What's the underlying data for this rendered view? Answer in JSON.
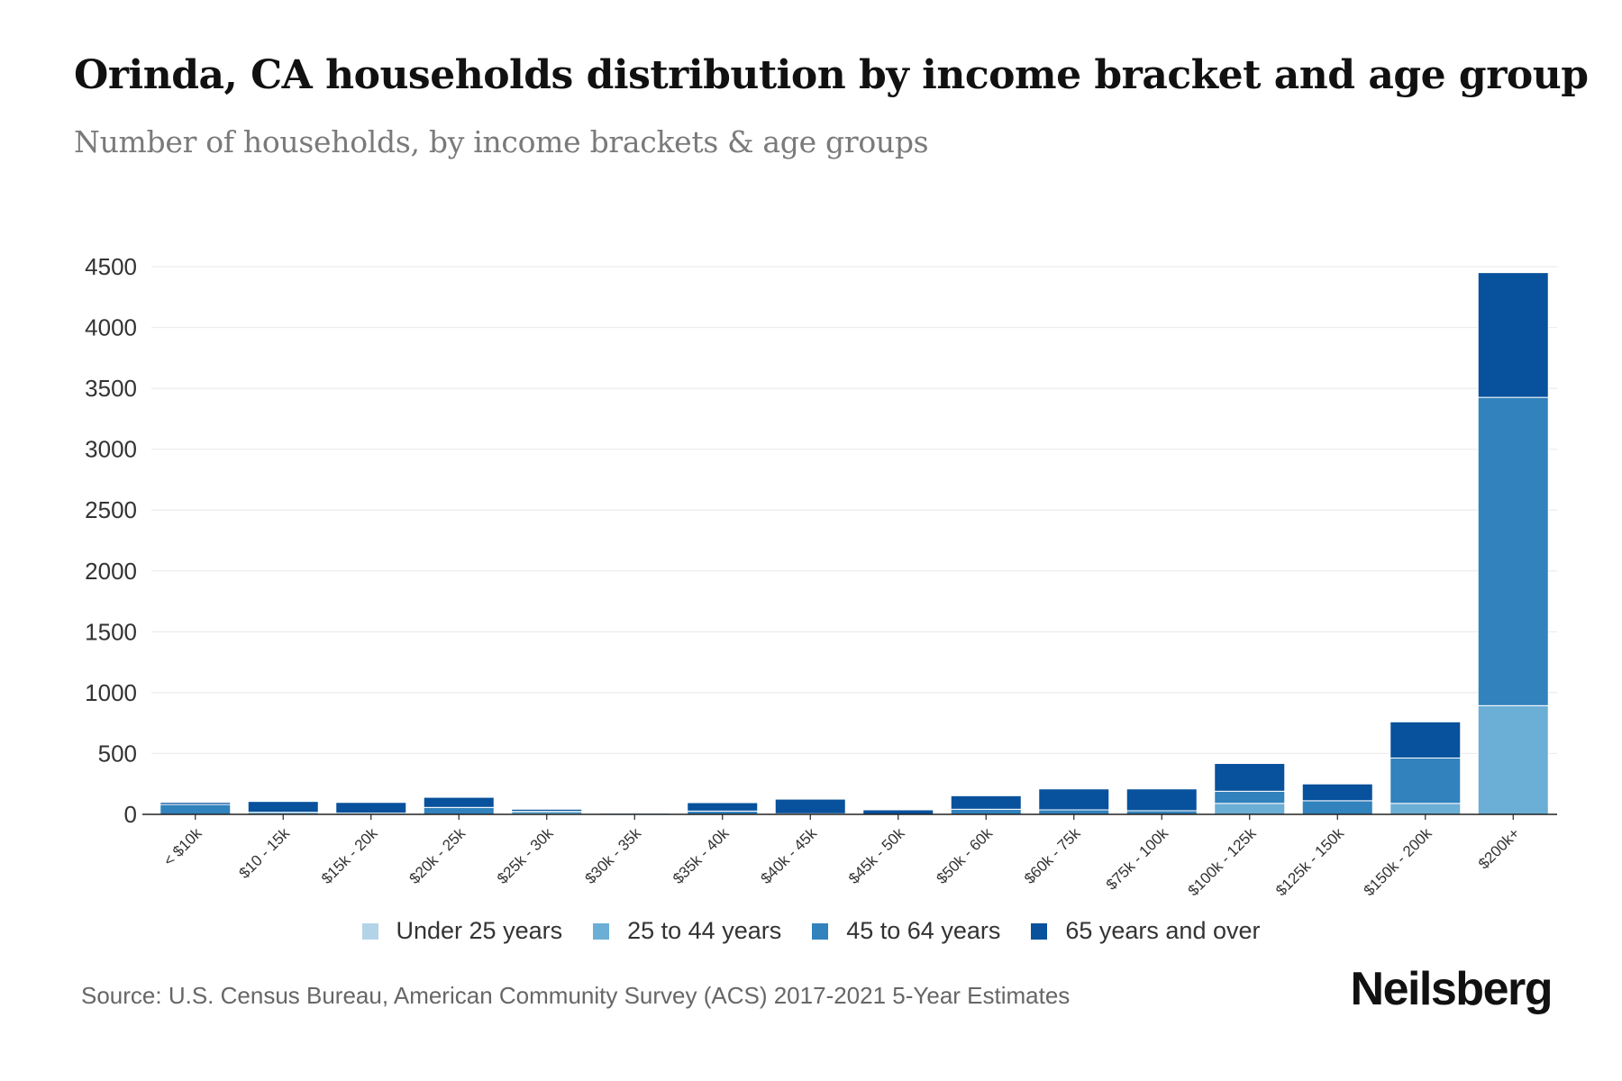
{
  "header": {
    "title": "Orinda, CA households distribution by income bracket and age group",
    "subtitle": "Number of households, by income brackets & age groups"
  },
  "footer": {
    "source": "Source: U.S. Census Bureau, American Community Survey (ACS) 2017-2021 5-Year Estimates",
    "brand": "Neilsberg"
  },
  "chart_data": {
    "type": "bar",
    "stacked": true,
    "title": "Orinda, CA households distribution by income bracket and age group",
    "subtitle": "Number of households, by income brackets & age groups",
    "xlabel": "",
    "ylabel": "",
    "ylim": [
      0,
      4500
    ],
    "yticks": [
      0,
      500,
      1000,
      1500,
      2000,
      2500,
      3000,
      3500,
      4000,
      4500
    ],
    "grid": true,
    "legend_position": "bottom-center",
    "categories": [
      "< $10k",
      "$10 - 15k",
      "$15k - 20k",
      "$20k - 25k",
      "$25k - 30k",
      "$30k - 35k",
      "$35k - 40k",
      "$40k - 45k",
      "$45k - 50k",
      "$50k - 60k",
      "$60k - 75k",
      "$75k - 100k",
      "$100k - 125k",
      "$125k - 150k",
      "$150k - 200k",
      "$200k+"
    ],
    "series": [
      {
        "name": "Under 25 years",
        "color": "#b3d4e8",
        "values": [
          0,
          0,
          0,
          0,
          0,
          12,
          0,
          0,
          0,
          0,
          0,
          0,
          0,
          0,
          0,
          0
        ]
      },
      {
        "name": "25 to 44 years",
        "color": "#6baed6",
        "values": [
          0,
          17,
          0,
          0,
          25,
          0,
          0,
          0,
          0,
          0,
          0,
          0,
          90,
          0,
          90,
          893
        ]
      },
      {
        "name": "45 to 64 years",
        "color": "#3182bd",
        "values": [
          81,
          0,
          10,
          57,
          0,
          0,
          27,
          5,
          0,
          42,
          37,
          30,
          100,
          112,
          373,
          2533
        ]
      },
      {
        "name": "65 years and over",
        "color": "#08519c",
        "values": [
          17,
          89,
          88,
          83,
          17,
          0,
          69,
          120,
          37,
          111,
          172,
          179,
          228,
          138,
          297,
          1025
        ]
      }
    ]
  }
}
